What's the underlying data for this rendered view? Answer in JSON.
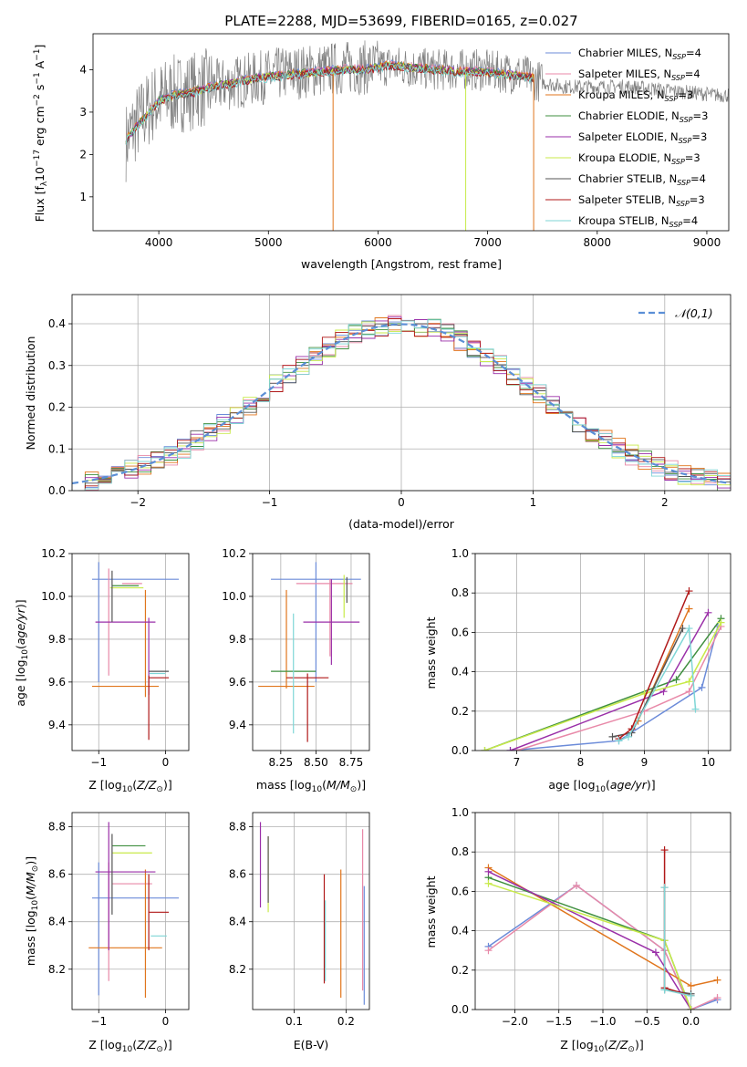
{
  "chart_data": [
    {
      "id": "spectrum",
      "type": "line",
      "title": "PLATE=2288, MJD=53699, FIBERID=0165, z=0.027",
      "xlabel": "wavelength [Angstrom, rest frame]",
      "ylabel": "Flux [f_λ 10^-17 erg cm^-2 s^-1 A^-1]",
      "xlim": [
        3400,
        9200
      ],
      "ylim": [
        0.2,
        4.85
      ],
      "xticks": [
        4000,
        5000,
        6000,
        7000,
        8000,
        9000
      ],
      "yticks": [
        1,
        2,
        3,
        4
      ],
      "grid": false,
      "legend_position": "upper-right",
      "data_series": {
        "name": "data",
        "color": "#808080",
        "x": [
          3700,
          3760,
          3850,
          3950,
          4100,
          4300,
          4500,
          4700,
          4900,
          5100,
          5300,
          5500,
          5700,
          5900,
          6100,
          6300,
          6500,
          6700,
          6900,
          7100,
          7300,
          7500,
          7700,
          7900,
          8100,
          8300,
          8500,
          8700,
          8900,
          9100,
          9200
        ],
        "y": [
          2.3,
          2.6,
          2.9,
          3.2,
          3.4,
          3.5,
          3.6,
          3.7,
          3.8,
          3.9,
          3.95,
          4.0,
          4.05,
          4.05,
          4.1,
          4.05,
          4.0,
          4.0,
          4.0,
          3.95,
          3.9,
          3.7,
          3.6,
          3.6,
          3.6,
          3.6,
          3.55,
          3.5,
          3.45,
          3.4,
          3.4
        ]
      },
      "model": {
        "x": [
          3700,
          3800,
          3900,
          4000,
          4150,
          4300,
          4500,
          4700,
          4900,
          5100,
          5300,
          5500,
          5700,
          5900,
          6100,
          6300,
          6500,
          6700,
          6900,
          7100,
          7300,
          7420
        ],
        "y": [
          2.4,
          2.7,
          3.0,
          3.3,
          3.45,
          3.5,
          3.65,
          3.75,
          3.85,
          3.9,
          3.95,
          4.0,
          4.05,
          4.05,
          4.15,
          4.1,
          4.05,
          4.0,
          4.0,
          3.95,
          3.9,
          3.85
        ]
      },
      "series": [
        {
          "name": "Chabrier MILES, N_SSP=4",
          "color": "#6b8bd9"
        },
        {
          "name": "Salpeter MILES, N_SSP=4",
          "color": "#e889a8"
        },
        {
          "name": "Kroupa MILES, N_SSP=3",
          "color": "#e0751c"
        },
        {
          "name": "Chabrier ELODIE, N_SSP=3",
          "color": "#3f8f3f"
        },
        {
          "name": "Salpeter ELODIE, N_SSP=3",
          "color": "#9a2fa8"
        },
        {
          "name": "Kroupa ELODIE, N_SSP=3",
          "color": "#c8ea4a"
        },
        {
          "name": "Chabrier STELIB, N_SSP=4",
          "color": "#555555"
        },
        {
          "name": "Salpeter STELIB, N_SSP=3",
          "color": "#b01818"
        },
        {
          "name": "Kroupa STELIB, N_SSP=4",
          "color": "#7fd6d6"
        }
      ]
    },
    {
      "id": "residuals",
      "type": "line",
      "xlabel": "(data-model)/error",
      "ylabel": "Normed distribution",
      "xlim": [
        -2.5,
        2.5
      ],
      "ylim": [
        0,
        0.47
      ],
      "xticks": [
        -2,
        -1,
        0,
        1,
        2
      ],
      "yticks": [
        0.0,
        0.1,
        0.2,
        0.3,
        0.4
      ],
      "grid": true,
      "legend_position": "upper-right",
      "reference_curve": {
        "name": "𝒩(0,1)",
        "color": "#5b8fd6",
        "style": "dashed"
      },
      "bin_width": 0.1
    },
    {
      "id": "age-vs-Z",
      "type": "scatter",
      "xlabel": "Z [log10(Z/Z⊙)]",
      "ylabel": "age [log10(age/yr)]",
      "xlim": [
        -1.4,
        0.35
      ],
      "ylim": [
        9.28,
        10.2
      ],
      "xticks": [
        -1,
        0
      ],
      "yticks": [
        9.4,
        9.6,
        9.8,
        10.0,
        10.2
      ],
      "grid": true,
      "points": [
        {
          "color": "#6b8bd9",
          "x": -0.45,
          "xerr": 0.65,
          "y": 10.08,
          "yerr": 0.0
        },
        {
          "color": "#6b8bd9",
          "x": -1.0,
          "xerr": 0.0,
          "y": 9.88,
          "yerr": 0.28
        },
        {
          "color": "#e889a8",
          "x": -0.5,
          "xerr": 0.15,
          "y": 10.06,
          "yerr": 0.0
        },
        {
          "color": "#e889a8",
          "x": -0.85,
          "xerr": 0.0,
          "y": 9.88,
          "yerr": 0.25
        },
        {
          "color": "#e0751c",
          "x": -0.6,
          "xerr": 0.5,
          "y": 9.58,
          "yerr": 0.0
        },
        {
          "color": "#e0751c",
          "x": -0.3,
          "xerr": 0.0,
          "y": 9.78,
          "yerr": 0.25
        },
        {
          "color": "#3f8f3f",
          "x": -0.6,
          "xerr": 0.2,
          "y": 10.05,
          "yerr": 0.0
        },
        {
          "color": "#9a2fa8",
          "x": -0.6,
          "xerr": 0.45,
          "y": 9.88,
          "yerr": 0.0
        },
        {
          "color": "#9a2fa8",
          "x": -0.25,
          "xerr": 0.0,
          "y": 9.72,
          "yerr": 0.18
        },
        {
          "color": "#c8ea4a",
          "x": -0.58,
          "xerr": 0.25,
          "y": 10.04,
          "yerr": 0.0
        },
        {
          "color": "#555555",
          "x": -0.1,
          "xerr": 0.15,
          "y": 9.65,
          "yerr": 0.0
        },
        {
          "color": "#555555",
          "x": -0.8,
          "xerr": 0.0,
          "y": 10.0,
          "yerr": 0.12
        },
        {
          "color": "#b01818",
          "x": -0.1,
          "xerr": 0.15,
          "y": 9.62,
          "yerr": 0.0
        },
        {
          "color": "#b01818",
          "x": -0.25,
          "xerr": 0.0,
          "y": 9.48,
          "yerr": 0.15
        },
        {
          "color": "#7fd6d6",
          "x": -0.12,
          "xerr": 0.12,
          "y": 9.64,
          "yerr": 0.0
        }
      ]
    },
    {
      "id": "age-vs-mass",
      "type": "scatter",
      "xlabel": "mass [log10(M/M⊙)]",
      "ylabel": "",
      "xlim": [
        8.05,
        8.88
      ],
      "ylim": [
        9.28,
        10.2
      ],
      "xticks": [
        8.25,
        8.5,
        8.75
      ],
      "yticks": [
        9.4,
        9.6,
        9.8,
        10.0,
        10.2
      ],
      "grid": true,
      "points": [
        {
          "color": "#6b8bd9",
          "x": 8.5,
          "xerr": 0.32,
          "y": 10.08,
          "yerr": 0.0
        },
        {
          "color": "#6b8bd9",
          "x": 8.5,
          "xerr": 0.0,
          "y": 9.88,
          "yerr": 0.28
        },
        {
          "color": "#e889a8",
          "x": 8.56,
          "xerr": 0.2,
          "y": 10.06,
          "yerr": 0.0
        },
        {
          "color": "#e889a8",
          "x": 8.6,
          "xerr": 0.0,
          "y": 9.9,
          "yerr": 0.18
        },
        {
          "color": "#e0751c",
          "x": 8.29,
          "xerr": 0.2,
          "y": 9.58,
          "yerr": 0.0
        },
        {
          "color": "#e0751c",
          "x": 8.29,
          "xerr": 0.0,
          "y": 9.8,
          "yerr": 0.23
        },
        {
          "color": "#3f8f3f",
          "x": 8.34,
          "xerr": 0.16,
          "y": 9.65,
          "yerr": 0.0
        },
        {
          "color": "#9a2fa8",
          "x": 8.61,
          "xerr": 0.2,
          "y": 9.88,
          "yerr": 0.0
        },
        {
          "color": "#9a2fa8",
          "x": 8.61,
          "xerr": 0.0,
          "y": 9.88,
          "yerr": 0.2
        },
        {
          "color": "#c8ea4a",
          "x": 8.7,
          "xerr": 0.0,
          "y": 10.0,
          "yerr": 0.1
        },
        {
          "color": "#555555",
          "x": 8.72,
          "xerr": 0.0,
          "y": 10.03,
          "yerr": 0.06
        },
        {
          "color": "#b01818",
          "x": 8.44,
          "xerr": 0.15,
          "y": 9.62,
          "yerr": 0.0
        },
        {
          "color": "#b01818",
          "x": 8.44,
          "xerr": 0.0,
          "y": 9.48,
          "yerr": 0.16
        },
        {
          "color": "#7fd6d6",
          "x": 8.34,
          "xerr": 0.0,
          "y": 9.64,
          "yerr": 0.28
        }
      ]
    },
    {
      "id": "weight-vs-age",
      "type": "line",
      "xlabel": "age [log10(age/yr)]",
      "ylabel": "mass weight",
      "xlim": [
        6.35,
        10.35
      ],
      "ylim": [
        0,
        1.0
      ],
      "xticks": [
        7,
        8,
        9,
        10
      ],
      "yticks": [
        0.0,
        0.2,
        0.4,
        0.6,
        0.8,
        1.0
      ],
      "grid": true,
      "series": [
        {
          "name": "Chabrier MILES",
          "color": "#6b8bd9",
          "x": [
            6.9,
            8.6,
            9.9,
            10.15
          ],
          "y": [
            0.0,
            0.05,
            0.32,
            0.63
          ]
        },
        {
          "name": "Salpeter MILES",
          "color": "#e889a8",
          "x": [
            7.0,
            9.0,
            9.7,
            10.2
          ],
          "y": [
            0.0,
            0.2,
            0.3,
            0.63
          ]
        },
        {
          "name": "Kroupa MILES",
          "color": "#e0751c",
          "x": [
            8.9,
            9.7
          ],
          "y": [
            0.15,
            0.72
          ]
        },
        {
          "name": "Chabrier ELODIE",
          "color": "#3f8f3f",
          "x": [
            6.5,
            9.5,
            10.2
          ],
          "y": [
            0.0,
            0.36,
            0.67
          ]
        },
        {
          "name": "Salpeter ELODIE",
          "color": "#9a2fa8",
          "x": [
            6.9,
            9.3,
            10.0
          ],
          "y": [
            0.0,
            0.3,
            0.7
          ]
        },
        {
          "name": "Kroupa ELODIE",
          "color": "#c8ea4a",
          "x": [
            6.5,
            9.0,
            9.7,
            10.2
          ],
          "y": [
            0.0,
            0.29,
            0.35,
            0.65
          ]
        },
        {
          "name": "Chabrier STELIB",
          "color": "#555555",
          "x": [
            8.5,
            8.8,
            9.6
          ],
          "y": [
            0.07,
            0.09,
            0.62
          ]
        },
        {
          "name": "Salpeter STELIB",
          "color": "#b01818",
          "x": [
            8.6,
            8.8,
            9.7
          ],
          "y": [
            0.06,
            0.11,
            0.81
          ]
        },
        {
          "name": "Kroupa STELIB",
          "color": "#7fd6d6",
          "x": [
            8.6,
            8.75,
            9.7,
            9.8
          ],
          "y": [
            0.05,
            0.07,
            0.62,
            0.21
          ]
        }
      ]
    },
    {
      "id": "mass-vs-Z",
      "type": "scatter",
      "xlabel": "Z [log10(Z/Z⊙)]",
      "ylabel": "mass [log10(M/M⊙)]",
      "xlim": [
        -1.4,
        0.35
      ],
      "ylim": [
        8.03,
        8.86
      ],
      "xticks": [
        -1,
        0
      ],
      "yticks": [
        8.2,
        8.4,
        8.6,
        8.8
      ],
      "grid": true,
      "points": [
        {
          "color": "#6b8bd9",
          "x": -0.45,
          "xerr": 0.65,
          "y": 8.5,
          "yerr": 0.0
        },
        {
          "color": "#6b8bd9",
          "x": -1.0,
          "xerr": 0.0,
          "y": 8.37,
          "yerr": 0.28
        },
        {
          "color": "#e889a8",
          "x": -0.5,
          "xerr": 0.3,
          "y": 8.56,
          "yerr": 0.0
        },
        {
          "color": "#e889a8",
          "x": -0.85,
          "xerr": 0.0,
          "y": 8.4,
          "yerr": 0.25
        },
        {
          "color": "#e0751c",
          "x": -0.6,
          "xerr": 0.55,
          "y": 8.29,
          "yerr": 0.0
        },
        {
          "color": "#e0751c",
          "x": -0.3,
          "xerr": 0.0,
          "y": 8.35,
          "yerr": 0.27
        },
        {
          "color": "#3f8f3f",
          "x": -0.55,
          "xerr": 0.25,
          "y": 8.72,
          "yerr": 0.0
        },
        {
          "color": "#9a2fa8",
          "x": -0.6,
          "xerr": 0.45,
          "y": 8.61,
          "yerr": 0.0
        },
        {
          "color": "#9a2fa8",
          "x": -0.85,
          "xerr": 0.0,
          "y": 8.55,
          "yerr": 0.27
        },
        {
          "color": "#c8ea4a",
          "x": -0.5,
          "xerr": 0.3,
          "y": 8.69,
          "yerr": 0.0
        },
        {
          "color": "#555555",
          "x": -0.8,
          "xerr": 0.0,
          "y": 8.6,
          "yerr": 0.17
        },
        {
          "color": "#b01818",
          "x": -0.1,
          "xerr": 0.15,
          "y": 8.44,
          "yerr": 0.0
        },
        {
          "color": "#b01818",
          "x": -0.25,
          "xerr": 0.0,
          "y": 8.44,
          "yerr": 0.16
        },
        {
          "color": "#7fd6d6",
          "x": -0.1,
          "xerr": 0.12,
          "y": 8.34,
          "yerr": 0.0
        }
      ]
    },
    {
      "id": "mass-vs-ebv",
      "type": "scatter",
      "xlabel": "E(B-V)",
      "ylabel": "",
      "xlim": [
        0.02,
        0.245
      ],
      "ylim": [
        8.03,
        8.86
      ],
      "xticks": [
        0.1,
        0.2
      ],
      "yticks": [
        8.2,
        8.4,
        8.6,
        8.8
      ],
      "grid": true,
      "points": [
        {
          "color": "#9a2fa8",
          "x": 0.035,
          "xerr": 0.0,
          "y": 8.64,
          "yerr": 0.18
        },
        {
          "color": "#c8ea4a",
          "x": 0.05,
          "xerr": 0.0,
          "y": 8.6,
          "yerr": 0.16
        },
        {
          "color": "#555555",
          "x": 0.05,
          "xerr": 0.0,
          "y": 8.62,
          "yerr": 0.14
        },
        {
          "color": "#b01818",
          "x": 0.158,
          "xerr": 0.0,
          "y": 8.37,
          "yerr": 0.23
        },
        {
          "color": "#7fd6d6",
          "x": 0.16,
          "xerr": 0.0,
          "y": 8.32,
          "yerr": 0.17
        },
        {
          "color": "#e0751c",
          "x": 0.19,
          "xerr": 0.0,
          "y": 8.35,
          "yerr": 0.27
        },
        {
          "color": "#e889a8",
          "x": 0.232,
          "xerr": 0.0,
          "y": 8.45,
          "yerr": 0.34
        },
        {
          "color": "#6b8bd9",
          "x": 0.235,
          "xerr": 0.0,
          "y": 8.3,
          "yerr": 0.25
        }
      ]
    },
    {
      "id": "weight-vs-Z",
      "type": "line",
      "xlabel": "Z [log10(Z/Z⊙)]",
      "ylabel": "mass weight",
      "xlim": [
        -2.45,
        0.45
      ],
      "ylim": [
        0,
        1.0
      ],
      "xticks": [
        -2.0,
        -1.5,
        -1.0,
        -0.5,
        0.0
      ],
      "yticks": [
        0.0,
        0.2,
        0.4,
        0.6,
        0.8,
        1.0
      ],
      "grid": true,
      "series": [
        {
          "name": "Chabrier MILES",
          "color": "#6b8bd9",
          "x": [
            -2.3,
            -1.3,
            -0.3,
            0.0,
            0.3
          ],
          "y": [
            0.32,
            0.63,
            0.3,
            0.0,
            0.05
          ]
        },
        {
          "name": "Salpeter MILES",
          "color": "#e889a8",
          "x": [
            -2.3,
            -1.3,
            -0.3,
            0.0,
            0.3
          ],
          "y": [
            0.3,
            0.63,
            0.3,
            0.0,
            0.06
          ]
        },
        {
          "name": "Kroupa MILES",
          "color": "#e0751c",
          "x": [
            -2.3,
            0.0,
            0.3
          ],
          "y": [
            0.72,
            0.12,
            0.15
          ]
        },
        {
          "name": "Chabrier ELODIE",
          "color": "#3f8f3f",
          "x": [
            -2.3,
            -0.3,
            0.0
          ],
          "y": [
            0.67,
            0.35,
            0.0
          ]
        },
        {
          "name": "Salpeter ELODIE",
          "color": "#9a2fa8",
          "x": [
            -2.3,
            -0.4,
            0.0
          ],
          "y": [
            0.7,
            0.29,
            0.0
          ]
        },
        {
          "name": "Kroupa ELODIE",
          "color": "#c8ea4a",
          "x": [
            -2.3,
            -0.3,
            0.0
          ],
          "y": [
            0.64,
            0.35,
            0.0
          ]
        },
        {
          "name": "Chabrier STELIB",
          "color": "#555555",
          "x": [
            -0.3,
            -0.3,
            0.0
          ],
          "y": [
            0.62,
            0.1,
            0.08
          ]
        },
        {
          "name": "Salpeter STELIB",
          "color": "#b01818",
          "x": [
            -0.3,
            -0.3,
            0.0
          ],
          "y": [
            0.81,
            0.11,
            0.07
          ]
        },
        {
          "name": "Kroupa STELIB",
          "color": "#7fd6d6",
          "x": [
            -0.3,
            -0.3,
            0.0
          ],
          "y": [
            0.62,
            0.1,
            0.07
          ]
        }
      ]
    }
  ]
}
